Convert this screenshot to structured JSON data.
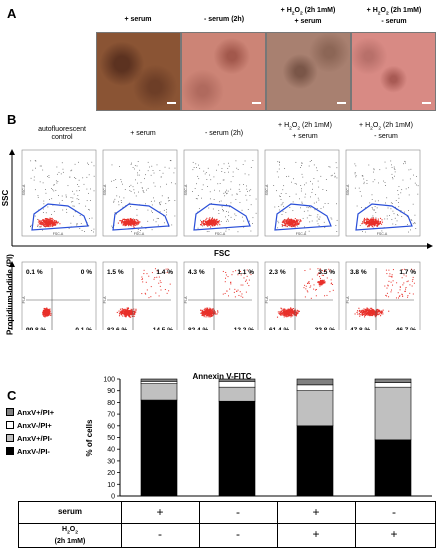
{
  "figure": {
    "panel_labels": [
      "A",
      "B",
      "C"
    ],
    "conditions": [
      "+ serum",
      "- serum (2h)",
      "+ H2O2 (2h 1mM)\n+ serum",
      "+ H2O2 (2h 1mM)\n- serum"
    ],
    "micro_colors": [
      "#8a5434",
      "#cc8476",
      "#a88070",
      "#d88a84"
    ],
    "flow_conditions": [
      "autofluorescent\ncontrol",
      "+ serum",
      "- serum (2h)",
      "+ H2O2 (2h 1mM)\n+ serum",
      "+ H2O2 (2h 1mM)\n- serum"
    ],
    "scatter_axes": {
      "y": "SSC",
      "x": "FSC",
      "small_y": "SSC-A",
      "small_x": "FSC-A"
    },
    "anx_axes": {
      "y": "Propidium-Iodide (PI)",
      "x": "Annexin V-FITC",
      "small_y": "PI-A",
      "small_x": "FITC-A"
    },
    "quadrants": [
      {
        "ul": "0.1 %",
        "ur": "0 %",
        "ll": "99.8 %",
        "lr": "0.1 %"
      },
      {
        "ul": "1.5 %",
        "ur": "1.4 %",
        "ll": "82.6 %",
        "lr": "14.5 %"
      },
      {
        "ul": "4.3 %",
        "ur": "1.1 %",
        "ll": "82.4 %",
        "lr": "12.2 %"
      },
      {
        "ul": "2.3 %",
        "ur": "3.5 %",
        "ll": "61.4 %",
        "lr": "32.8 %"
      },
      {
        "ul": "3.8 %",
        "ur": "1.7 %",
        "ll": "47.8 %",
        "lr": "46.7 %"
      }
    ],
    "table": {
      "row1_label": "serum",
      "row1": [
        "+",
        "-",
        "+",
        "-"
      ],
      "row2_label": "H2O2\n(2h 1mM)",
      "row2": [
        "-",
        "-",
        "+",
        "+"
      ]
    },
    "colors": {
      "dots": "#e8302a",
      "gate": "#2a4fd8",
      "scatter_bg": "#555555"
    }
  },
  "chart_data": {
    "type": "bar",
    "stacked": true,
    "categories": [
      "+ serum / - H2O2",
      "- serum / - H2O2",
      "+ serum / + H2O2",
      "- serum / + H2O2"
    ],
    "ylabel": "% of cells",
    "ylim": [
      0,
      100
    ],
    "yticks": [
      0,
      10,
      20,
      30,
      40,
      50,
      60,
      70,
      80,
      90,
      100
    ],
    "series": [
      {
        "name": "AnxV-/PI-",
        "color": "#000000",
        "values": [
          82,
          81,
          60,
          48
        ]
      },
      {
        "name": "AnxV+/PI-",
        "color": "#c0c0c0",
        "values": [
          14,
          12,
          30,
          45
        ]
      },
      {
        "name": "AnxV-/PI+",
        "color": "#ffffff",
        "values": [
          2,
          5,
          5,
          4
        ]
      },
      {
        "name": "AnxV+/PI+",
        "color": "#808080",
        "values": [
          2,
          2,
          5,
          3
        ]
      }
    ]
  }
}
